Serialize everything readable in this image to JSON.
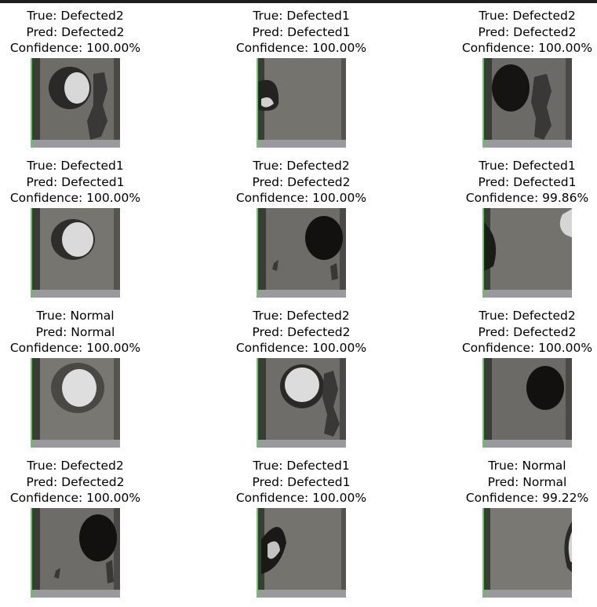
{
  "figure": {
    "samples": [
      {
        "true_label": "True: Defected2",
        "pred_label": "Pred: Defected2",
        "confidence": "Confidence: 100.00%",
        "hole": "light-right",
        "rust": true
      },
      {
        "true_label": "True: Defected1",
        "pred_label": "Pred: Defected1",
        "confidence": "Confidence: 100.00%",
        "hole": "edge-left",
        "rust": false
      },
      {
        "true_label": "True: Defected2",
        "pred_label": "Pred: Defected2",
        "confidence": "Confidence: 100.00%",
        "hole": "dark-left",
        "rust": true
      },
      {
        "true_label": "True: Defected1",
        "pred_label": "Pred: Defected1",
        "confidence": "Confidence: 100.00%",
        "hole": "light-center",
        "rust": false
      },
      {
        "true_label": "True: Defected2",
        "pred_label": "Pred: Defected2",
        "confidence": "Confidence: 100.00%",
        "hole": "dark-right",
        "rust": true
      },
      {
        "true_label": "True: Defected1",
        "pred_label": "Pred: Defected1",
        "confidence": "Confidence: 99.86%",
        "hole": "edge-split",
        "rust": false
      },
      {
        "true_label": "True: Normal",
        "pred_label": "Pred: Normal",
        "confidence": "Confidence: 100.00%",
        "hole": "light-ring",
        "rust": false
      },
      {
        "true_label": "True: Defected2",
        "pred_label": "Pred: Defected2",
        "confidence": "Confidence: 100.00%",
        "hole": "light-center",
        "rust": true
      },
      {
        "true_label": "True: Defected2",
        "pred_label": "Pred: Defected2",
        "confidence": "Confidence: 100.00%",
        "hole": "dark-center",
        "rust": false
      },
      {
        "true_label": "True: Defected2",
        "pred_label": "Pred: Defected2",
        "confidence": "Confidence: 100.00%",
        "hole": "dark-right",
        "rust": true
      },
      {
        "true_label": "True: Defected1",
        "pred_label": "Pred: Defected1",
        "confidence": "Confidence: 100.00%",
        "hole": "edge-left-dark",
        "rust": false
      },
      {
        "true_label": "True: Normal",
        "pred_label": "Pred: Normal",
        "confidence": "Confidence: 99.22%",
        "hole": "edge-right",
        "rust": false
      }
    ]
  }
}
